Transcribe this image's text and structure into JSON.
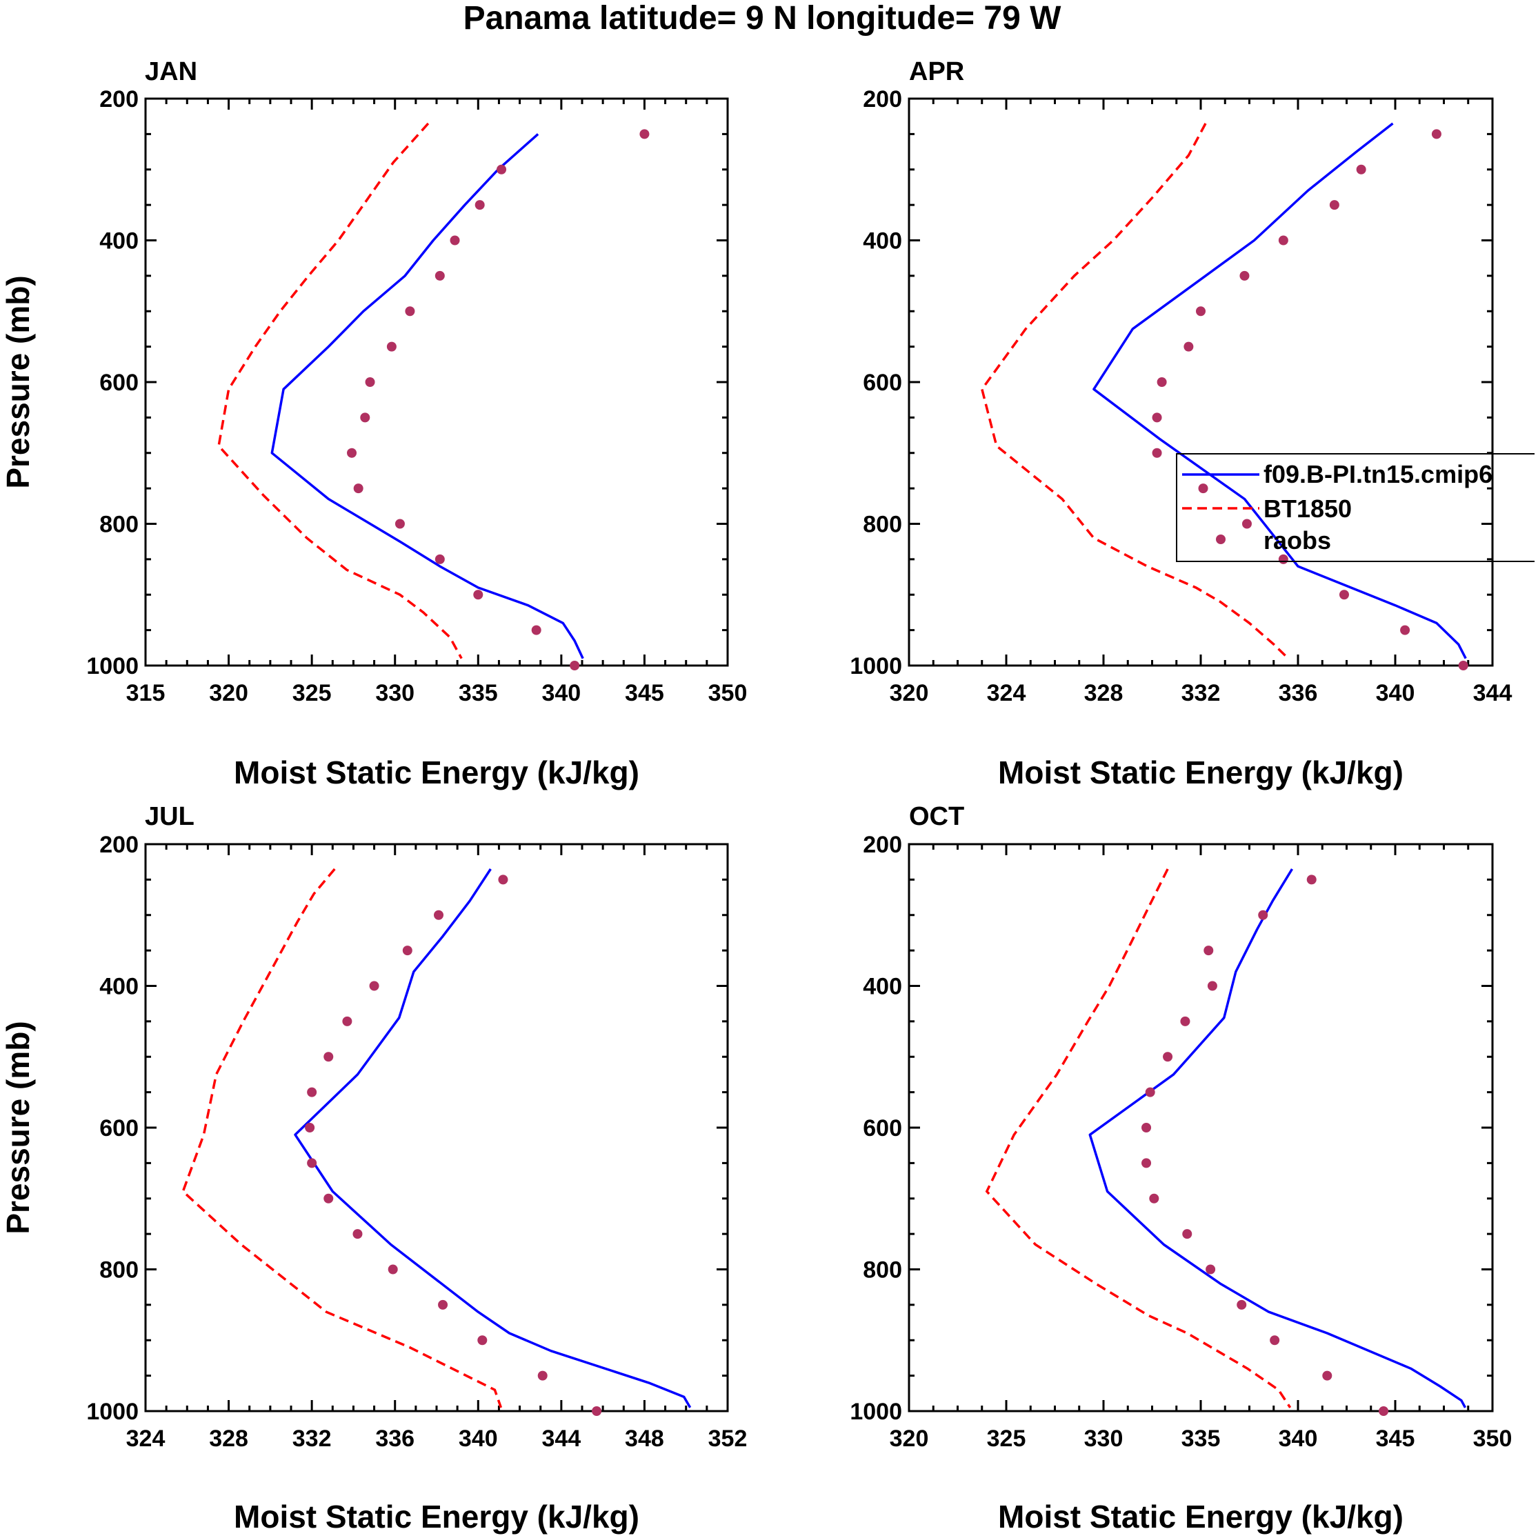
{
  "page": {
    "title": "Panama  latitude= 9 N longitude= 79 W"
  },
  "legend": {
    "entries": [
      "f09.B-PI.tn15.cmip6",
      "BT1850",
      "raobs"
    ],
    "colors": {
      "model": "#0000ff",
      "bt1850": "#ff0000",
      "raobs": "#b03060"
    }
  },
  "chart_data": [
    {
      "type": "line",
      "title": "JAN",
      "xlabel": "Moist Static Energy (kJ/kg)",
      "ylabel": "Pressure (mb)",
      "xlim": [
        315,
        350
      ],
      "ylim": [
        200,
        1000
      ],
      "y_inverted": true,
      "xticks": [
        315,
        320,
        325,
        330,
        335,
        340,
        345,
        350
      ],
      "yticks": [
        200,
        400,
        600,
        800,
        1000
      ],
      "series": [
        {
          "name": "f09.B-PI.tn15.cmip6",
          "style": "solid",
          "pressure": [
            250,
            300,
            350,
            400,
            450,
            500,
            550,
            610,
            700,
            765,
            825,
            860,
            890,
            915,
            940,
            965,
            990
          ],
          "values": [
            338.6,
            336.2,
            334.2,
            332.3,
            330.6,
            328.1,
            326.0,
            323.3,
            322.6,
            326.0,
            330.3,
            332.7,
            335.0,
            338.0,
            340.1,
            340.8,
            341.3
          ]
        },
        {
          "name": "BT1850",
          "style": "dashed",
          "pressure": [
            235,
            290,
            350,
            400,
            450,
            500,
            550,
            610,
            690,
            760,
            820,
            865,
            900,
            925,
            960,
            990
          ],
          "values": [
            332.0,
            329.9,
            328.1,
            326.6,
            324.8,
            323.1,
            321.6,
            320.0,
            319.4,
            322.1,
            324.7,
            327.1,
            330.3,
            331.7,
            333.3,
            334.0
          ]
        },
        {
          "name": "raobs",
          "style": "markers",
          "pressure": [
            250,
            300,
            350,
            400,
            450,
            500,
            550,
            600,
            650,
            700,
            750,
            800,
            850,
            900,
            950,
            1000
          ],
          "values": [
            345.0,
            336.4,
            335.1,
            333.6,
            332.7,
            330.9,
            329.8,
            328.5,
            328.2,
            327.4,
            327.8,
            330.3,
            332.7,
            335.0,
            338.5,
            340.8
          ]
        }
      ]
    },
    {
      "type": "line",
      "title": "APR",
      "xlabel": "Moist Static Energy (kJ/kg)",
      "ylabel": "",
      "xlim": [
        320,
        344
      ],
      "ylim": [
        200,
        1000
      ],
      "y_inverted": true,
      "xticks": [
        320,
        324,
        328,
        332,
        336,
        340,
        344
      ],
      "yticks": [
        200,
        400,
        600,
        800,
        1000
      ],
      "series": [
        {
          "name": "f09.B-PI.tn15.cmip6",
          "style": "solid",
          "pressure": [
            235,
            275,
            330,
            400,
            450,
            525,
            610,
            680,
            765,
            860,
            915,
            940,
            970,
            990
          ],
          "values": [
            339.9,
            338.4,
            336.4,
            334.2,
            332.2,
            329.2,
            327.6,
            330.3,
            333.8,
            336.0,
            340.0,
            341.7,
            342.6,
            342.9
          ]
        },
        {
          "name": "BT1850",
          "style": "dashed",
          "pressure": [
            235,
            280,
            340,
            400,
            450,
            525,
            610,
            690,
            765,
            820,
            860,
            890,
            910,
            940,
            970,
            990
          ],
          "values": [
            332.2,
            331.5,
            330.0,
            328.4,
            326.8,
            324.8,
            323.0,
            323.6,
            326.3,
            327.6,
            329.8,
            331.8,
            332.8,
            334.0,
            335.0,
            335.6
          ]
        },
        {
          "name": "raobs",
          "style": "markers",
          "pressure": [
            250,
            300,
            350,
            400,
            450,
            500,
            550,
            600,
            650,
            700,
            750,
            800,
            850,
            900,
            950,
            1000
          ],
          "values": [
            341.7,
            338.6,
            337.5,
            335.4,
            333.8,
            332.0,
            331.5,
            330.4,
            330.2,
            330.2,
            332.1,
            333.9,
            335.4,
            337.9,
            340.4,
            342.8
          ]
        }
      ]
    },
    {
      "type": "line",
      "title": "JUL",
      "xlabel": "Moist Static Energy (kJ/kg)",
      "ylabel": "Pressure (mb)",
      "xlim": [
        324,
        352
      ],
      "ylim": [
        200,
        1000
      ],
      "y_inverted": true,
      "xticks": [
        324,
        328,
        332,
        336,
        340,
        344,
        348,
        352
      ],
      "yticks": [
        200,
        400,
        600,
        800,
        1000
      ],
      "series": [
        {
          "name": "f09.B-PI.tn15.cmip6",
          "style": "solid",
          "pressure": [
            235,
            280,
            330,
            380,
            445,
            525,
            610,
            690,
            765,
            860,
            890,
            915,
            960,
            980,
            995
          ],
          "values": [
            340.6,
            339.6,
            338.3,
            336.9,
            336.2,
            334.2,
            331.2,
            333.0,
            335.8,
            340.0,
            341.5,
            343.5,
            348.2,
            349.9,
            350.2
          ]
        },
        {
          "name": "BT1850",
          "style": "dashed",
          "pressure": [
            235,
            270,
            310,
            380,
            450,
            525,
            610,
            690,
            765,
            860,
            910,
            970,
            995
          ],
          "values": [
            333.1,
            332.1,
            331.3,
            330.0,
            328.7,
            327.4,
            326.8,
            325.8,
            328.6,
            332.7,
            336.7,
            340.8,
            341.1
          ]
        },
        {
          "name": "raobs",
          "style": "markers",
          "pressure": [
            250,
            300,
            350,
            400,
            450,
            500,
            550,
            600,
            650,
            700,
            750,
            800,
            850,
            900,
            950,
            1000
          ],
          "values": [
            341.2,
            338.1,
            336.6,
            335.0,
            333.7,
            332.8,
            332.0,
            331.9,
            332.0,
            332.8,
            334.2,
            335.9,
            338.3,
            340.2,
            343.1,
            345.7
          ]
        }
      ]
    },
    {
      "type": "line",
      "title": "OCT",
      "xlabel": "Moist Static Energy (kJ/kg)",
      "ylabel": "",
      "xlim": [
        320,
        350
      ],
      "ylim": [
        200,
        1000
      ],
      "y_inverted": true,
      "xticks": [
        320,
        325,
        330,
        335,
        340,
        345,
        350
      ],
      "yticks": [
        200,
        400,
        600,
        800,
        1000
      ],
      "series": [
        {
          "name": "f09.B-PI.tn15.cmip6",
          "style": "solid",
          "pressure": [
            235,
            280,
            320,
            380,
            445,
            525,
            610,
            690,
            765,
            820,
            860,
            890,
            940,
            965,
            985,
            995
          ],
          "values": [
            339.7,
            338.7,
            337.9,
            336.8,
            336.2,
            333.6,
            329.3,
            330.2,
            333.1,
            336.0,
            338.5,
            341.5,
            345.8,
            347.3,
            348.4,
            348.6
          ]
        },
        {
          "name": "BT1850",
          "style": "dashed",
          "pressure": [
            235,
            290,
            340,
            400,
            450,
            525,
            610,
            690,
            765,
            820,
            865,
            890,
            940,
            970,
            995
          ],
          "values": [
            333.3,
            332.3,
            331.4,
            330.3,
            329.2,
            327.6,
            325.4,
            324.0,
            326.5,
            329.6,
            332.3,
            334.3,
            337.4,
            339.0,
            339.6
          ]
        },
        {
          "name": "raobs",
          "style": "markers",
          "pressure": [
            250,
            300,
            350,
            400,
            450,
            500,
            550,
            600,
            650,
            700,
            750,
            800,
            850,
            900,
            950,
            1000
          ],
          "values": [
            340.7,
            338.2,
            335.4,
            335.6,
            334.2,
            333.3,
            332.4,
            332.2,
            332.2,
            332.6,
            334.3,
            335.5,
            337.1,
            338.8,
            341.5,
            344.4
          ]
        }
      ]
    }
  ]
}
